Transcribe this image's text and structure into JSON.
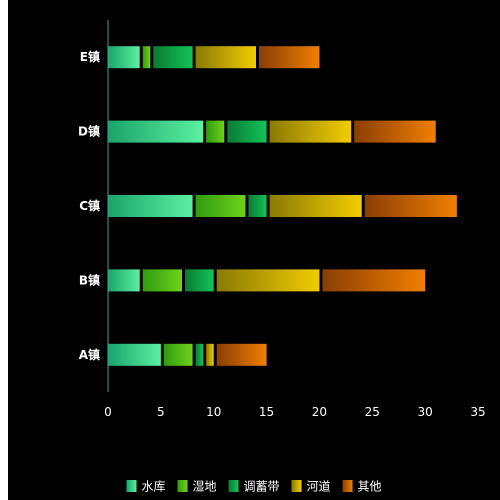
{
  "chart_data": {
    "type": "bar",
    "orientation": "horizontal",
    "stacked": true,
    "categories": [
      "A镇",
      "B镇",
      "C镇",
      "D镇",
      "E镇"
    ],
    "series": [
      {
        "name": "水库",
        "values": [
          5,
          3,
          8,
          9,
          3
        ],
        "colors": [
          "#1aa46a",
          "#5cf0a2"
        ]
      },
      {
        "name": "湿地",
        "values": [
          3,
          4,
          5,
          2,
          1
        ],
        "colors": [
          "#2f9b0e",
          "#6fd21a"
        ]
      },
      {
        "name": "调蓄带",
        "values": [
          1,
          3,
          2,
          4,
          4
        ],
        "colors": [
          "#0a7a34",
          "#12c358"
        ]
      },
      {
        "name": "河道",
        "values": [
          1,
          10,
          9,
          8,
          6
        ],
        "colors": [
          "#8a7a05",
          "#f2cc00"
        ]
      },
      {
        "name": "其他",
        "values": [
          5,
          10,
          9,
          8,
          6
        ],
        "colors": [
          "#8a3e05",
          "#f07f00"
        ]
      }
    ],
    "xlim": [
      0,
      35
    ],
    "xticks": [
      0,
      5,
      10,
      15,
      20,
      25,
      30,
      35
    ],
    "grid": false,
    "legend_position": "bottom"
  },
  "colors": {
    "background": "#000000",
    "axis": "#4a9a9a",
    "text": "#ffffff"
  }
}
